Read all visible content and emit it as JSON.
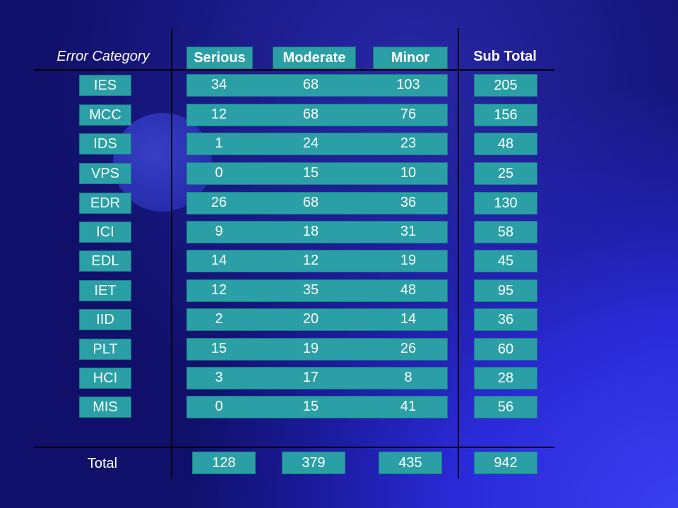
{
  "table": {
    "headers": {
      "category": "Error Category",
      "serious": "Serious",
      "moderate": "Moderate",
      "minor": "Minor",
      "subtotal": "Sub Total"
    },
    "rows": [
      {
        "category": "IES",
        "serious": "34",
        "moderate": "68",
        "minor": "103",
        "subtotal": "205"
      },
      {
        "category": "MCC",
        "serious": "12",
        "moderate": "68",
        "minor": "76",
        "subtotal": "156"
      },
      {
        "category": "IDS",
        "serious": "1",
        "moderate": "24",
        "minor": "23",
        "subtotal": "48"
      },
      {
        "category": "VPS",
        "serious": "0",
        "moderate": "15",
        "minor": "10",
        "subtotal": "25"
      },
      {
        "category": "EDR",
        "serious": "26",
        "moderate": "68",
        "minor": "36",
        "subtotal": "130"
      },
      {
        "category": "ICI",
        "serious": "9",
        "moderate": "18",
        "minor": "31",
        "subtotal": "58"
      },
      {
        "category": "EDL",
        "serious": "14",
        "moderate": "12",
        "minor": "19",
        "subtotal": "45"
      },
      {
        "category": "IET",
        "serious": "12",
        "moderate": "35",
        "minor": "48",
        "subtotal": "95"
      },
      {
        "category": "IID",
        "serious": "2",
        "moderate": "20",
        "minor": "14",
        "subtotal": "36"
      },
      {
        "category": "PLT",
        "serious": "15",
        "moderate": "19",
        "minor": "26",
        "subtotal": "60"
      },
      {
        "category": "HCI",
        "serious": "3",
        "moderate": "17",
        "minor": "8",
        "subtotal": "28"
      },
      {
        "category": "MIS",
        "serious": "0",
        "moderate": "15",
        "minor": "41",
        "subtotal": "56"
      }
    ],
    "totals": {
      "label": "Total",
      "serious": "128",
      "moderate": "379",
      "minor": "435",
      "subtotal": "942"
    }
  },
  "colors": {
    "cell": "#2aa0a6",
    "background": "#1a1a9a"
  }
}
